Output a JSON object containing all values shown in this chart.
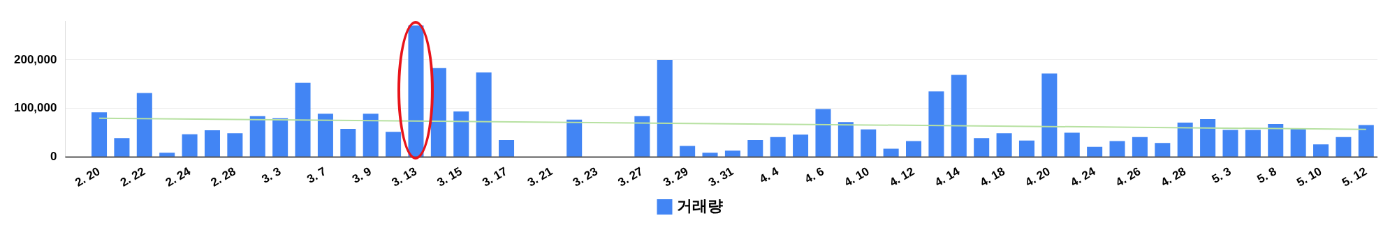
{
  "chart_data": {
    "type": "bar",
    "categories": [
      null,
      "2. 20",
      null,
      "2. 22",
      null,
      "2. 24",
      null,
      "2. 28",
      null,
      "3. 3",
      null,
      "3. 7",
      null,
      "3. 9",
      null,
      "3. 13",
      null,
      "3. 15",
      null,
      "3. 17",
      null,
      "3. 21",
      null,
      "3. 23",
      null,
      "3. 27",
      null,
      "3. 29",
      null,
      "3. 31",
      null,
      "4. 4",
      null,
      "4. 6",
      null,
      "4. 10",
      null,
      "4. 12",
      null,
      "4. 14",
      null,
      "4. 18",
      null,
      "4. 20",
      null,
      "4. 24",
      null,
      "4. 26",
      null,
      "4. 28",
      null,
      "5. 3",
      null,
      "5. 8",
      null,
      "5. 10",
      null,
      "5. 12"
    ],
    "series": [
      {
        "name": "거래량",
        "color": "#4285f4",
        "values": [
          0,
          92000,
          39000,
          132000,
          9000,
          47000,
          55000,
          49000,
          84000,
          80000,
          153000,
          89000,
          58000,
          89000,
          52000,
          271000,
          183000,
          94000,
          174000,
          35000,
          0,
          0,
          77000,
          0,
          0,
          84000,
          200000,
          23000,
          9000,
          13000,
          35000,
          41000,
          46000,
          99000,
          72000,
          57000,
          17000,
          33000,
          135000,
          169000,
          39000,
          49000,
          34000,
          172000,
          50000,
          21000,
          33000,
          41000,
          29000,
          71000,
          78000,
          56000,
          56000,
          68000,
          58000,
          26000,
          41000,
          66000
        ]
      },
      {
        "type": "line",
        "color": "#b7e1a1",
        "x": [
          "2. 20",
          "5. 12"
        ],
        "values": [
          80000,
          57000
        ]
      }
    ],
    "ylim": [
      0,
      280000
    ],
    "yticks": [
      0,
      {
        "value": 100000,
        "label": "100,000"
      },
      {
        "value": 200000,
        "label": "200,000"
      }
    ],
    "grid": "y",
    "legend": "bottom"
  }
}
